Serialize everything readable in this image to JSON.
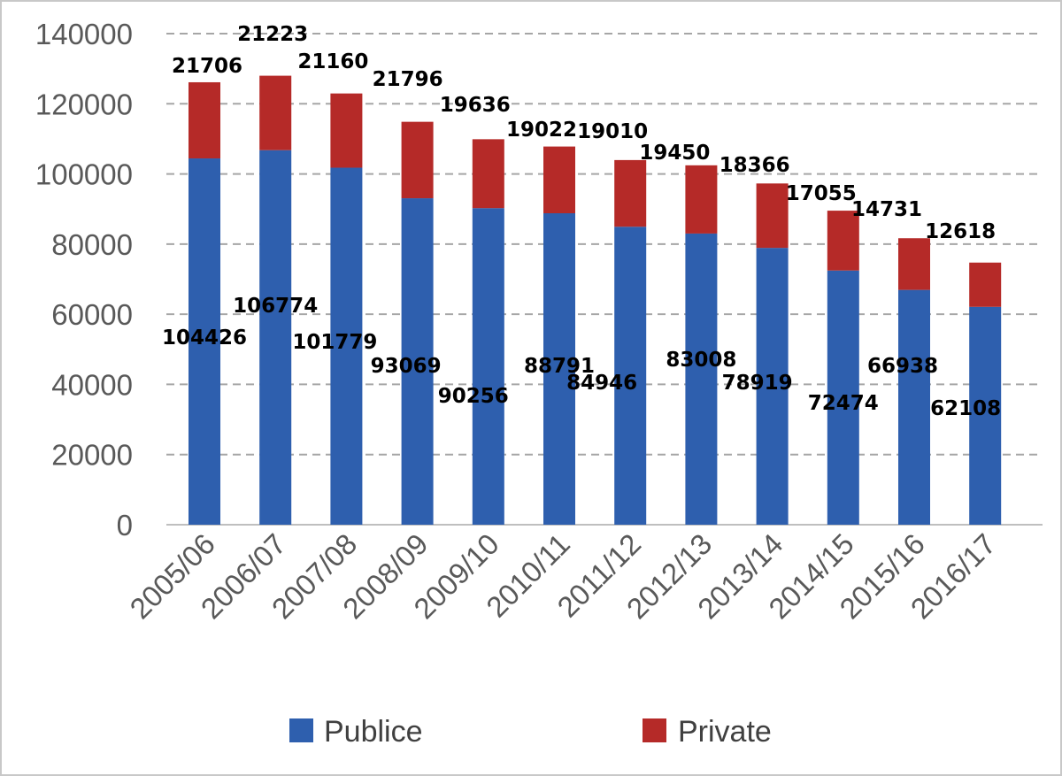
{
  "chart_data": {
    "type": "bar",
    "stacked": true,
    "categories": [
      "2005/06",
      "2006/07",
      "2007/08",
      "2008/09",
      "2009/10",
      "2010/11",
      "2011/12",
      "2012/13",
      "2013/14",
      "2014/15",
      "2015/16",
      "2016/17"
    ],
    "series": [
      {
        "name": "Publice",
        "color": "#2e5fae",
        "values": [
          104426,
          106774,
          101779,
          93069,
          90256,
          88791,
          84946,
          83008,
          78919,
          72474,
          66938,
          62108
        ]
      },
      {
        "name": "Private",
        "color": "#b52a28",
        "values": [
          21706,
          21223,
          21160,
          21796,
          19636,
          19022,
          19010,
          19450,
          18366,
          17055,
          14731,
          12618
        ]
      }
    ],
    "ylim": [
      0,
      140000
    ],
    "yticks": [
      0,
      20000,
      40000,
      60000,
      80000,
      100000,
      120000,
      140000
    ],
    "grid": true,
    "legend": "bottom"
  }
}
